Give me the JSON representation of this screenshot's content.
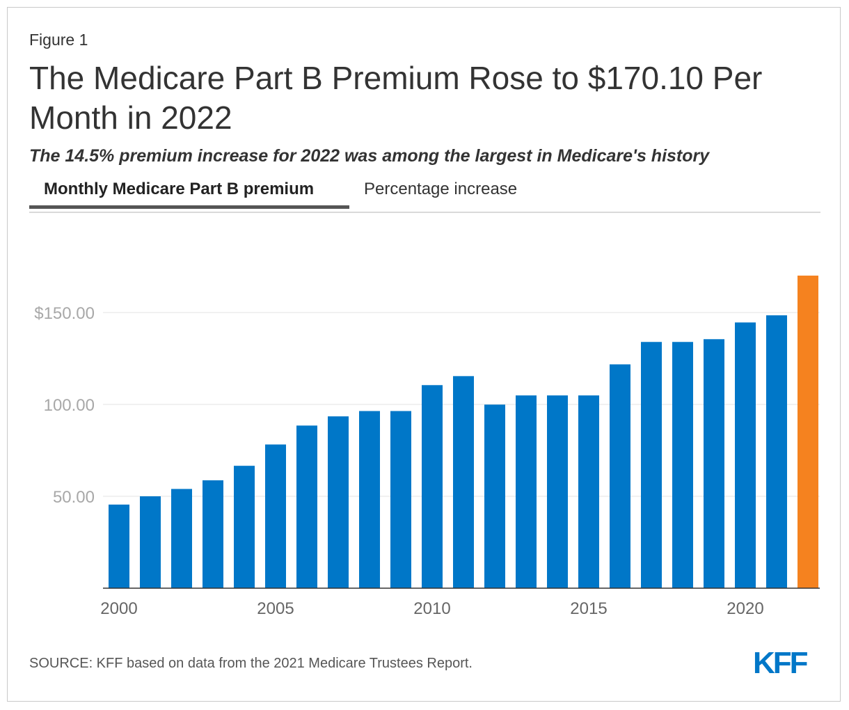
{
  "header": {
    "figure_label": "Figure 1",
    "title": "The Medicare Part B Premium Rose to $170.10 Per Month in 2022",
    "subtitle": "The 14.5% premium increase for 2022 was among the largest in Medicare's history"
  },
  "tabs": [
    {
      "label": "Monthly Medicare Part B premium",
      "active": true
    },
    {
      "label": "Percentage increase",
      "active": false
    }
  ],
  "chart_data": {
    "type": "bar",
    "categories": [
      "2000",
      "2001",
      "2002",
      "2003",
      "2004",
      "2005",
      "2006",
      "2007",
      "2008",
      "2009",
      "2010",
      "2011",
      "2012",
      "2013",
      "2014",
      "2015",
      "2016",
      "2017",
      "2018",
      "2019",
      "2020",
      "2021",
      "2022"
    ],
    "values": [
      45.5,
      50.0,
      54.0,
      58.7,
      66.6,
      78.2,
      88.5,
      93.5,
      96.4,
      96.4,
      110.5,
      115.4,
      99.9,
      104.9,
      104.9,
      104.9,
      121.8,
      134.0,
      134.0,
      135.5,
      144.6,
      148.5,
      170.1
    ],
    "colors": {
      "default": "#0077c8",
      "highlight": "#f5821f",
      "highlight_category": "2022"
    },
    "y_ticks": [
      {
        "value": 50,
        "label": "50.00"
      },
      {
        "value": 100,
        "label": "100.00"
      },
      {
        "value": 150,
        "label": "$150.00"
      }
    ],
    "x_ticks": [
      "2000",
      "2005",
      "2010",
      "2015",
      "2020"
    ],
    "ylim": [
      0,
      175
    ],
    "grid": true,
    "xlabel": "",
    "ylabel": ""
  },
  "footer": {
    "source": "SOURCE: KFF based on data from the 2021 Medicare Trustees Report.",
    "logo_text": "KFF"
  }
}
